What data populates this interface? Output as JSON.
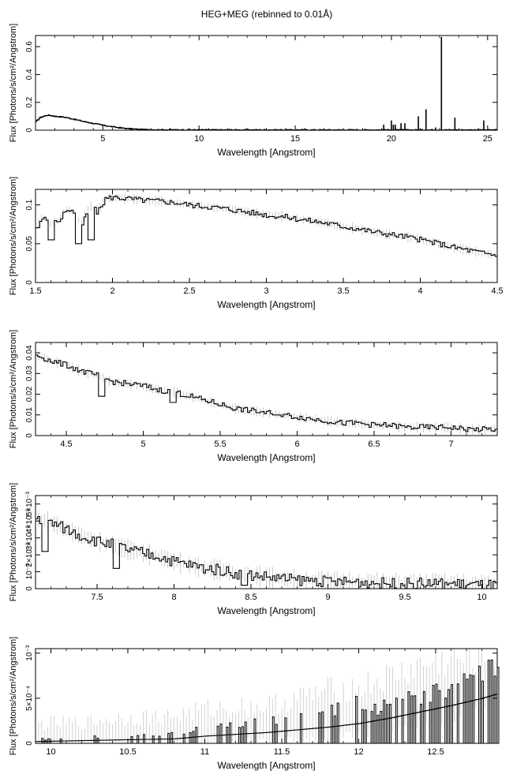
{
  "figure": {
    "title": "HEG+MEG (rebinned to 0.01Å)"
  },
  "chart_data": [
    {
      "type": "line",
      "xlabel": "Wavelength [Angstrom]",
      "ylabel": "Flux [Photons/s/cm²/Angstrom]",
      "xlim": [
        1.5,
        25.5
      ],
      "ylim": [
        0,
        0.68
      ],
      "xticks": [
        5,
        10,
        15,
        20,
        25
      ],
      "yticks": [
        0,
        0.2,
        0.4,
        0.6
      ],
      "ytick_labels": [
        "0",
        "0.2",
        "0.4",
        "0.6"
      ],
      "series": [
        {
          "x": [
            1.5,
            1.7,
            1.9,
            2.1,
            2.3,
            2.5,
            3.0,
            3.5,
            4.0,
            4.5,
            5.0,
            5.5,
            6.0,
            6.5,
            7.0,
            8.0,
            10.0,
            15.0,
            19.0,
            25.5
          ],
          "y": [
            0.06,
            0.09,
            0.1,
            0.108,
            0.105,
            0.1,
            0.093,
            0.078,
            0.062,
            0.048,
            0.035,
            0.024,
            0.015,
            0.009,
            0.005,
            0.003,
            0.002,
            0.002,
            0.002,
            0.002
          ]
        }
      ],
      "lines": {
        "x": [
          19.6,
          20.0,
          20.1,
          20.2,
          20.5,
          20.7,
          21.4,
          21.8,
          22.3,
          22.6,
          23.3,
          24.8
        ],
        "y": [
          0.04,
          0.07,
          0.04,
          0.04,
          0.05,
          0.05,
          0.1,
          0.15,
          0.02,
          0.67,
          0.09,
          0.07
        ]
      }
    },
    {
      "type": "line",
      "xlabel": "Wavelength [Angstrom]",
      "ylabel": "Flux [Photons/s/cm²/Angstrom]",
      "xlim": [
        1.5,
        4.5
      ],
      "ylim": [
        0,
        0.12
      ],
      "xticks": [
        1.5,
        2,
        2.5,
        3,
        3.5,
        4,
        4.5
      ],
      "yticks": [
        0,
        0.05,
        0.1
      ],
      "ytick_labels": [
        "0",
        "0.05",
        "0.1"
      ],
      "series": [
        {
          "x": [
            1.5,
            1.55,
            1.6,
            1.65,
            1.7,
            1.75,
            1.8,
            1.85,
            1.9,
            1.95,
            2.0,
            2.1,
            2.2,
            2.3,
            2.4,
            2.5,
            2.6,
            2.7,
            2.8,
            2.9,
            3.0,
            3.1,
            3.2,
            3.3,
            3.4,
            3.5,
            3.6,
            3.7,
            3.8,
            3.9,
            4.0,
            4.1,
            4.2,
            4.3,
            4.4,
            4.5
          ],
          "y": [
            0.07,
            0.085,
            0.075,
            0.08,
            0.095,
            0.09,
            0.075,
            0.1,
            0.09,
            0.108,
            0.11,
            0.108,
            0.106,
            0.105,
            0.103,
            0.1,
            0.098,
            0.096,
            0.093,
            0.09,
            0.087,
            0.085,
            0.082,
            0.079,
            0.076,
            0.072,
            0.069,
            0.065,
            0.062,
            0.059,
            0.055,
            0.051,
            0.046,
            0.042,
            0.038,
            0.035
          ]
        }
      ],
      "dips": {
        "x": [
          1.6,
          1.77,
          1.86,
          3.03
        ],
        "y": [
          0.055,
          0.05,
          0.055,
          0.085
        ]
      }
    },
    {
      "type": "line",
      "xlabel": "Wavelength [Angstrom]",
      "ylabel": "Flux [Photons/s/cm²/Angstrom]",
      "xlim": [
        4.3,
        7.3
      ],
      "ylim": [
        0,
        0.045
      ],
      "xticks": [
        4.5,
        5,
        5.5,
        6,
        6.5,
        7
      ],
      "yticks": [
        0,
        0.01,
        0.02,
        0.03,
        0.04
      ],
      "ytick_labels": [
        "0",
        "0.01",
        "0.02",
        "0.03",
        "0.04"
      ],
      "series": [
        {
          "x": [
            4.3,
            4.4,
            4.5,
            4.6,
            4.7,
            4.8,
            4.9,
            5.0,
            5.1,
            5.2,
            5.3,
            5.4,
            5.5,
            5.6,
            5.7,
            5.8,
            5.9,
            6.0,
            6.1,
            6.2,
            6.3,
            6.4,
            6.5,
            6.6,
            6.7,
            6.8,
            6.9,
            7.0,
            7.1,
            7.2,
            7.3
          ],
          "y": [
            0.039,
            0.036,
            0.034,
            0.031,
            0.029,
            0.026,
            0.025,
            0.024,
            0.022,
            0.021,
            0.019,
            0.017,
            0.015,
            0.013,
            0.012,
            0.011,
            0.01,
            0.009,
            0.008,
            0.007,
            0.006,
            0.006,
            0.005,
            0.005,
            0.004,
            0.004,
            0.004,
            0.004,
            0.003,
            0.003,
            0.003
          ]
        }
      ],
      "dips": {
        "x": [
          4.72,
          5.18,
          5.85
        ],
        "y": [
          0.019,
          0.016,
          0.01
        ]
      }
    },
    {
      "type": "line",
      "xlabel": "Wavelength [Angstrom]",
      "ylabel": "Flux [Photons/s/cm²/Angstrom]",
      "xlim": [
        7.1,
        10.1
      ],
      "ylim": [
        0,
        0.0055
      ],
      "xticks": [
        7.5,
        8,
        8.5,
        9,
        9.5,
        10
      ],
      "yticks": [
        0,
        0.001,
        0.002,
        0.003,
        0.004,
        0.005
      ],
      "ytick_labels": [
        "0",
        "10⁻³",
        "2×10⁻³",
        "3×10⁻³",
        "4×10⁻³",
        "5×10⁻³"
      ],
      "series": [
        {
          "x": [
            7.1,
            7.2,
            7.3,
            7.4,
            7.5,
            7.6,
            7.7,
            7.8,
            7.9,
            8.0,
            8.1,
            8.2,
            8.3,
            8.4,
            8.5,
            8.6,
            8.7,
            8.8,
            8.9,
            9.0,
            9.2,
            9.4,
            9.6,
            9.8,
            10.0,
            10.1
          ],
          "y": [
            0.0042,
            0.0039,
            0.0035,
            0.0031,
            0.0028,
            0.0026,
            0.0023,
            0.0021,
            0.0019,
            0.0016,
            0.0014,
            0.0012,
            0.0011,
            0.0009,
            0.0008,
            0.0007,
            0.0006,
            0.0005,
            0.0005,
            0.0004,
            0.0004,
            0.0003,
            0.0003,
            0.0003,
            0.0002,
            0.0002
          ]
        }
      ],
      "dips": {
        "x": [
          7.15,
          7.62,
          8.45
        ],
        "y": [
          0.0022,
          0.0012,
          0.0002
        ]
      }
    },
    {
      "type": "line",
      "xlabel": "Wavelength [Angstrom]",
      "ylabel": "Flux [Photons/s/cm²/Angstrom]",
      "xlim": [
        9.9,
        12.9
      ],
      "ylim": [
        0,
        0.00105
      ],
      "xticks": [
        10,
        10.5,
        11,
        11.5,
        12,
        12.5
      ],
      "yticks": [
        0,
        0.0005,
        0.001
      ],
      "ytick_labels": [
        "0",
        "5×10⁻⁴",
        "10⁻³"
      ],
      "series": [
        {
          "x": [
            9.9,
            10.2,
            10.5,
            10.8,
            11.0,
            11.2,
            11.4,
            11.6,
            11.8,
            12.0,
            12.2,
            12.4,
            12.6,
            12.8,
            12.9
          ],
          "y": [
            2e-05,
            3e-05,
            4e-05,
            5e-05,
            8e-05,
            0.0001,
            0.00012,
            0.00015,
            0.00018,
            0.00022,
            0.00028,
            0.00035,
            0.00042,
            0.0005,
            0.00055
          ]
        }
      ],
      "errors": [
        0.0002,
        0.0002,
        0.00025,
        0.00025,
        0.0003,
        0.0003,
        0.0003,
        0.00035,
        0.0004,
        0.0004,
        0.00045,
        0.0005,
        0.0005,
        0.00045,
        0.0004
      ]
    }
  ]
}
